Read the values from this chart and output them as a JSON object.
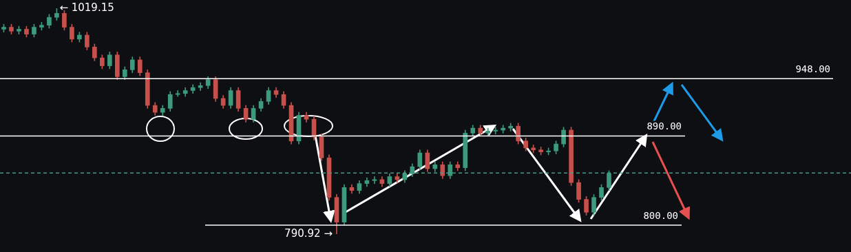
{
  "chart_data": {
    "type": "candlestick",
    "tick_labels": false,
    "categories": [
      null,
      null,
      null,
      null,
      null,
      null,
      null,
      null,
      null,
      null,
      null,
      null,
      null,
      null,
      null,
      null,
      null,
      null,
      null,
      null,
      null,
      null,
      null,
      null,
      null,
      null,
      null,
      null,
      null,
      null,
      null,
      null,
      null,
      null,
      null,
      null,
      null,
      null,
      null,
      null,
      null,
      null,
      null,
      null,
      null,
      null,
      null,
      null,
      null,
      null,
      null,
      null,
      null,
      null,
      null,
      null,
      null,
      null,
      null,
      null,
      null,
      null,
      null,
      null,
      null,
      null,
      null,
      null,
      null,
      null,
      null,
      null,
      null,
      null,
      null,
      null,
      null,
      null,
      null,
      null,
      null
    ],
    "ohlc": [
      [
        998,
        1003,
        995,
        1000
      ],
      [
        1000,
        1003,
        993,
        996
      ],
      [
        996,
        1001,
        993,
        998
      ],
      [
        998,
        1001,
        990,
        993
      ],
      [
        993,
        1003,
        990,
        1000
      ],
      [
        1000,
        1005,
        997,
        1002
      ],
      [
        1002,
        1013,
        999,
        1010
      ],
      [
        1010,
        1019.15,
        1007,
        1014
      ],
      [
        1014,
        1017,
        997,
        1000
      ],
      [
        1000,
        1003,
        985,
        988
      ],
      [
        988,
        995,
        985,
        992
      ],
      [
        992,
        995,
        977,
        980
      ],
      [
        980,
        983,
        966,
        969
      ],
      [
        969,
        972,
        958,
        961
      ],
      [
        961,
        975,
        958,
        972
      ],
      [
        972,
        975,
        947,
        950
      ],
      [
        950,
        960,
        947,
        957
      ],
      [
        957,
        970,
        954,
        967
      ],
      [
        967,
        970,
        951,
        954
      ],
      [
        954,
        957,
        918,
        921
      ],
      [
        921,
        924,
        911,
        914
      ],
      [
        914,
        921,
        911,
        918
      ],
      [
        918,
        935,
        915,
        932
      ],
      [
        932,
        936,
        930,
        933
      ],
      [
        933,
        939,
        930,
        936
      ],
      [
        936,
        942,
        933,
        939
      ],
      [
        939,
        944,
        936,
        941
      ],
      [
        941,
        950,
        938,
        947
      ],
      [
        947,
        950,
        925,
        928
      ],
      [
        928,
        931,
        918,
        921
      ],
      [
        921,
        939,
        918,
        936
      ],
      [
        936,
        939,
        915,
        918
      ],
      [
        918,
        921,
        904,
        907
      ],
      [
        907,
        921,
        904,
        918
      ],
      [
        918,
        928,
        915,
        925
      ],
      [
        925,
        939,
        922,
        936
      ],
      [
        936,
        939,
        929,
        932
      ],
      [
        932,
        935,
        918,
        921
      ],
      [
        921,
        924,
        882,
        885
      ],
      [
        885,
        914,
        882,
        911
      ],
      [
        911,
        914,
        904,
        907
      ],
      [
        907,
        910,
        886,
        889
      ],
      [
        889,
        892,
        865,
        868
      ],
      [
        868,
        871,
        825,
        828
      ],
      [
        828,
        831,
        790.92,
        803
      ],
      [
        803,
        841,
        800,
        838
      ],
      [
        838,
        841,
        832,
        835
      ],
      [
        835,
        845,
        832,
        842
      ],
      [
        842,
        848,
        839,
        845
      ],
      [
        845,
        849,
        842,
        846
      ],
      [
        846,
        849,
        839,
        842
      ],
      [
        842,
        852,
        839,
        849
      ],
      [
        849,
        852,
        843,
        846
      ],
      [
        846,
        855,
        843,
        852
      ],
      [
        852,
        862,
        849,
        859
      ],
      [
        859,
        876,
        856,
        873
      ],
      [
        873,
        876,
        854,
        857
      ],
      [
        857,
        864,
        854,
        861
      ],
      [
        861,
        864,
        847,
        850
      ],
      [
        850,
        864,
        847,
        861
      ],
      [
        861,
        864,
        855,
        858
      ],
      [
        858,
        896,
        855,
        893
      ],
      [
        893,
        901,
        890,
        898
      ],
      [
        898,
        901,
        890,
        893
      ],
      [
        893,
        898,
        890,
        895
      ],
      [
        895,
        899,
        892,
        896
      ],
      [
        896,
        901,
        893,
        898
      ],
      [
        898,
        903,
        895,
        900
      ],
      [
        900,
        903,
        882,
        885
      ],
      [
        885,
        888,
        875,
        878
      ],
      [
        878,
        881,
        873,
        876
      ],
      [
        876,
        879,
        871,
        874
      ],
      [
        874,
        878,
        871,
        875
      ],
      [
        875,
        885,
        872,
        882
      ],
      [
        882,
        899,
        879,
        896
      ],
      [
        896,
        899,
        840,
        843
      ],
      [
        843,
        846,
        823,
        826
      ],
      [
        826,
        829,
        810,
        813
      ],
      [
        813,
        831,
        810,
        828
      ],
      [
        828,
        841,
        825,
        838
      ],
      [
        838,
        855,
        835,
        852
      ]
    ],
    "ref_lines": [
      {
        "axis": "y",
        "value": 948,
        "label": "948.00",
        "color": "#ffffff"
      },
      {
        "axis": "y",
        "value": 890,
        "label": "890.00",
        "color": "#ffffff"
      },
      {
        "axis": "y",
        "value": 800,
        "label": "800.00",
        "color": "#ffffff"
      },
      {
        "axis": "y",
        "value": 852.6,
        "color": "#4a9a8a",
        "line_style": "dashed"
      }
    ],
    "annotations": [
      "← 1019.15",
      "790.92 →"
    ]
  }
}
